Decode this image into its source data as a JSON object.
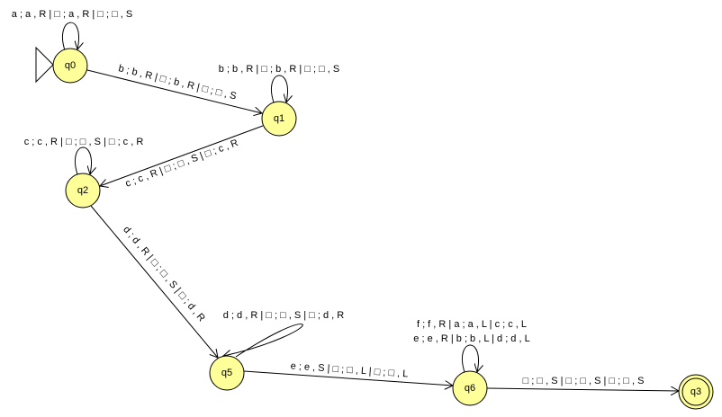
{
  "nodes": [
    {
      "label": "q0"
    },
    {
      "label": "q1"
    },
    {
      "label": "q2"
    },
    {
      "label": "q5"
    },
    {
      "label": "q6"
    },
    {
      "label": "q3"
    }
  ],
  "edges": [
    {
      "labels": [
        "a ; a , R | □ ; a , R | □ ; □ , S"
      ]
    },
    {
      "labels": [
        "b ; b , R | □ ; b , R | □ ; □ , S"
      ]
    },
    {
      "labels": [
        "b ; b , R | □ ; b , R | □ ; □ , S"
      ]
    },
    {
      "labels": [
        "c ; c , R | □ ; □ , S | □ ; c , R"
      ]
    },
    {
      "labels": [
        "c ; c , R | □ ; □ , S | □ ; c , R"
      ]
    },
    {
      "labels": [
        "d ; d , R | □ ; □ , S | □ ; d , R"
      ]
    },
    {
      "labels": [
        "d ; d , R | □ ; □ , S | □ ; d , R"
      ]
    },
    {
      "labels": [
        "e ; e , S | □ ; □ , L | □ ; □ , L"
      ]
    },
    {
      "labels": [
        "f ; f , R | a ; a , L | c ; c , L",
        "e ; e , R | b ; b , L | d ; d , L"
      ]
    },
    {
      "labels": [
        "□ ; □ , S | □ ; □ , S | □ ; □ , S"
      ]
    }
  ]
}
